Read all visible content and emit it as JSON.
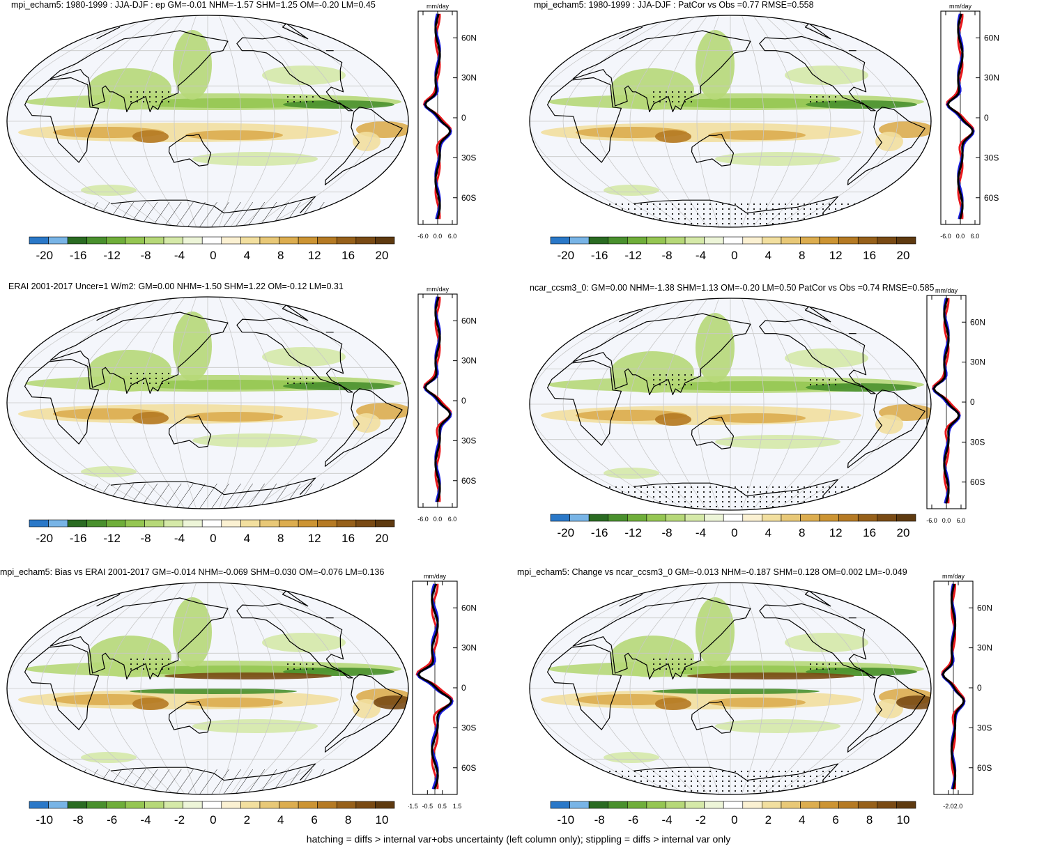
{
  "colors": {
    "ocean": "#f4f6fb",
    "grid": "#c8c8c8",
    "land_line": "#000000",
    "series_model": "#e8191d",
    "series_obs": "#1b1fe0",
    "series_mean": "#000000"
  },
  "colorbar_colors": [
    "#2a78c8",
    "#78b4e6",
    "#2a6b22",
    "#49902d",
    "#6fae3a",
    "#95c652",
    "#b6d878",
    "#d5e9a8",
    "#edf5d8",
    "#ffffff",
    "#fbf1d2",
    "#f2df9f",
    "#e8c877",
    "#dcad4f",
    "#cc9433",
    "#b57a24",
    "#96601a",
    "#794a14",
    "#5e3a10"
  ],
  "panels": [
    {
      "id": "p1",
      "title": "mpi_echam5: 1980-1999 : JJA-DJF : ep GM=-0.01 NHM=-1.57 SHM=1.25 OM=-0.20 LM=0.45",
      "zonal_unit": "mm/day",
      "zonal_lat_ticks": [
        "60N",
        "30N",
        "0",
        "30S",
        "60S"
      ],
      "zonal_x_ticks": [
        "-6.0",
        "0.0",
        "6.0"
      ],
      "colorbar_labels": [
        "-20",
        "-16",
        "-12",
        "-8",
        "-4",
        "0",
        "4",
        "8",
        "12",
        "16",
        "20"
      ],
      "antarctic_pattern": "hatch"
    },
    {
      "id": "p2",
      "title": "mpi_echam5: 1980-1999 : JJA-DJF : PatCor vs Obs =0.77 RMSE=0.558",
      "zonal_unit": "mm/day",
      "zonal_lat_ticks": [
        "60N",
        "30N",
        "0",
        "30S",
        "60S"
      ],
      "zonal_x_ticks": [
        "-6.0",
        "0.0",
        "6.0"
      ],
      "colorbar_labels": [
        "-20",
        "-16",
        "-12",
        "-8",
        "-4",
        "0",
        "4",
        "8",
        "12",
        "16",
        "20"
      ],
      "antarctic_pattern": "stipple"
    },
    {
      "id": "p3",
      "title": "ERAI 2001-2017 Uncer=1 W/m2: GM=0.00 NHM=-1.50 SHM=1.22 OM=-0.12 LM=0.31",
      "zonal_unit": "mm/day",
      "zonal_lat_ticks": [
        "60N",
        "30N",
        "0",
        "30S",
        "60S"
      ],
      "zonal_x_ticks": [
        "-6.0",
        "0.0",
        "6.0"
      ],
      "colorbar_labels": [
        "-20",
        "-16",
        "-12",
        "-8",
        "-4",
        "0",
        "4",
        "8",
        "12",
        "16",
        "20"
      ],
      "antarctic_pattern": "hatch"
    },
    {
      "id": "p4",
      "title": "ncar_ccsm3_0: GM=0.00 NHM=-1.38 SHM=1.13 OM=-0.20 LM=0.50 PatCor vs Obs =0.74 RMSE=0.585",
      "zonal_unit": "mm/day",
      "zonal_lat_ticks": [
        "60N",
        "30N",
        "0",
        "30S",
        "60S"
      ],
      "zonal_x_ticks": [
        "-6.0",
        "0.0",
        "6.0"
      ],
      "colorbar_labels": [
        "-20",
        "-16",
        "-12",
        "-8",
        "-4",
        "0",
        "4",
        "8",
        "12",
        "16",
        "20"
      ],
      "antarctic_pattern": "stipple"
    },
    {
      "id": "p5",
      "title": "mpi_echam5: Bias vs ERAI 2001-2017 GM=-0.014 NHM=-0.069 SHM=0.030 OM=-0.076 LM=0.136",
      "zonal_unit": "mm/day",
      "zonal_lat_ticks": [
        "60N",
        "30N",
        "0",
        "30S",
        "60S"
      ],
      "zonal_x_ticks": [
        "-1.5",
        "-0.5",
        "0.5",
        "1.5"
      ],
      "colorbar_labels": [
        "-10",
        "-8",
        "-6",
        "-4",
        "-2",
        "0",
        "2",
        "4",
        "6",
        "8",
        "10"
      ],
      "antarctic_pattern": "hatch"
    },
    {
      "id": "p6",
      "title": "mpi_echam5: Change vs ncar_ccsm3_0 GM=-0.013 NHM=-0.187 SHM=0.128 OM=0.002 LM=-0.049",
      "zonal_unit": "mm/day",
      "zonal_lat_ticks": [
        "60N",
        "30N",
        "0",
        "30S",
        "60S"
      ],
      "zonal_x_ticks": [
        "-2.0",
        "2.0"
      ],
      "colorbar_labels": [
        "-10",
        "-8",
        "-6",
        "-4",
        "-2",
        "0",
        "2",
        "4",
        "6",
        "8",
        "10"
      ],
      "antarctic_pattern": "stipple"
    }
  ],
  "caption": "hatching = diffs > internal var+obs uncertainty (left column only); stippling = diffs > internal var only"
}
